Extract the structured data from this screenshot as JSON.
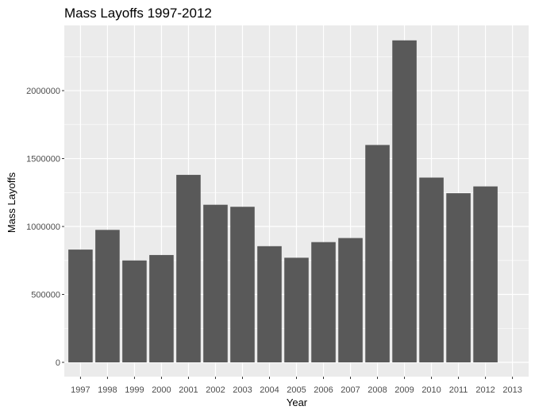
{
  "chart_data": {
    "type": "bar",
    "title": "Mass Layoffs 1997-2012",
    "xlabel": "Year",
    "ylabel": "Mass Layoffs",
    "categories": [
      "1997",
      "1998",
      "1999",
      "2000",
      "2001",
      "2002",
      "2003",
      "2004",
      "2005",
      "2006",
      "2007",
      "2008",
      "2009",
      "2010",
      "2011",
      "2012",
      "2013"
    ],
    "values": [
      830000,
      975000,
      750000,
      790000,
      1380000,
      1160000,
      1145000,
      855000,
      770000,
      885000,
      915000,
      1600000,
      2370000,
      1360000,
      1245000,
      1295000,
      null
    ],
    "y_ticks": [
      "0",
      "500000",
      "1000000",
      "1500000",
      "2000000"
    ],
    "y_tick_values": [
      0,
      500000,
      1000000,
      1500000,
      2000000
    ],
    "ylim": [
      0,
      2480000
    ],
    "grid": true,
    "legend": "none",
    "colors": {
      "panel": "#ebebeb",
      "grid_major": "#ffffff",
      "bar": "#595959",
      "tick_text": "#4d4d4d",
      "tick_mark": "#333333"
    }
  }
}
